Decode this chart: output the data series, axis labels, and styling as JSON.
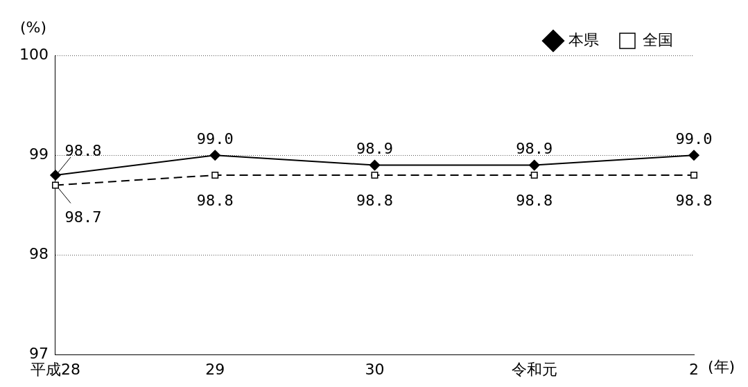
{
  "chart_data": {
    "type": "line",
    "categories": [
      "平成28",
      "29",
      "30",
      "令和元",
      "2"
    ],
    "series": [
      {
        "name": "本県",
        "color": "#000000",
        "marker": "diamond",
        "line_style": "solid",
        "values": [
          98.8,
          99.0,
          98.9,
          98.9,
          99.0
        ],
        "value_labels": [
          "98.8",
          "99.0",
          "98.9",
          "98.9",
          "99.0"
        ]
      },
      {
        "name": "全国",
        "color": "#000000",
        "marker": "square",
        "line_style": "dashed",
        "values": [
          98.7,
          98.8,
          98.8,
          98.8,
          98.8
        ],
        "value_labels": [
          "98.7",
          "98.8",
          "98.8",
          "98.8",
          "98.8"
        ]
      }
    ],
    "xlabel": "(年)",
    "ylabel": "(%)",
    "ylim": [
      97,
      100
    ],
    "yticks": [
      97,
      98,
      99,
      100
    ],
    "grid": "y",
    "legend": "top right"
  }
}
